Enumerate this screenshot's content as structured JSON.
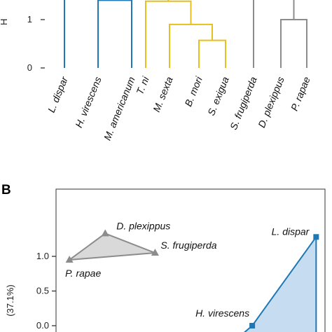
{
  "chart_data": [
    {
      "type": "dendrogram",
      "ylabel": "H",
      "yticks": [
        0,
        1
      ],
      "leaves": [
        {
          "label": "L. dispar",
          "group": "blue"
        },
        {
          "label": "H. virescens",
          "group": "blue"
        },
        {
          "label": "M. americanum",
          "group": "blue"
        },
        {
          "label": "T. ni",
          "group": "yellow"
        },
        {
          "label": "M. sexta",
          "group": "yellow"
        },
        {
          "label": "B. mori",
          "group": "yellow"
        },
        {
          "label": "S. exigua",
          "group": "yellow"
        },
        {
          "label": "S. frugiperda",
          "group": "gray"
        },
        {
          "label": "D. plexippus",
          "group": "gray"
        },
        {
          "label": "P. rapae",
          "group": "gray"
        }
      ],
      "merges": [
        {
          "left": "H. virescens",
          "right": "M. americanum",
          "height": 1.4,
          "group": "blue"
        },
        {
          "left": "B. mori",
          "right": "S. exigua",
          "height": 0.57,
          "group": "yellow"
        },
        {
          "left": "M. sexta",
          "right": "B. mori+S. exigua",
          "height": 0.9,
          "group": "yellow"
        },
        {
          "left": "T. ni",
          "right": "M. sexta+B. mori+S. exigua",
          "height": 1.38,
          "group": "yellow"
        },
        {
          "left": "D. plexippus",
          "right": "P. rapae",
          "height": 1.0,
          "group": "gray"
        }
      ]
    },
    {
      "type": "scatter",
      "panel_label": "B",
      "ylabel": "(37.1%)",
      "yticks": [
        0.0,
        0.5,
        1.0
      ],
      "ylim": [
        -0.05,
        1.5
      ],
      "xlim": [
        0,
        1
      ],
      "groups": [
        {
          "group": "gray",
          "marker": "triangle",
          "points": [
            {
              "label": "D. plexippus",
              "x": 0.165,
              "y": 1.33
            },
            {
              "label": "S. frugiperda",
              "x": 0.36,
              "y": 1.05
            },
            {
              "label": "P. rapae",
              "x": 0.025,
              "y": 0.95
            }
          ]
        },
        {
          "group": "blue",
          "marker": "square",
          "points": [
            {
              "label": "L. dispar",
              "x": 0.99,
              "y": 1.28
            },
            {
              "label": "H. virescens",
              "x": 0.74,
              "y": 0.0
            }
          ]
        }
      ]
    }
  ],
  "colors": {
    "blue": "#1f78b4",
    "yellow": "#e5c01e",
    "gray": "#8c8c8c",
    "blue_fill": "#c6dcf0",
    "gray_fill": "#d9d9d9"
  }
}
